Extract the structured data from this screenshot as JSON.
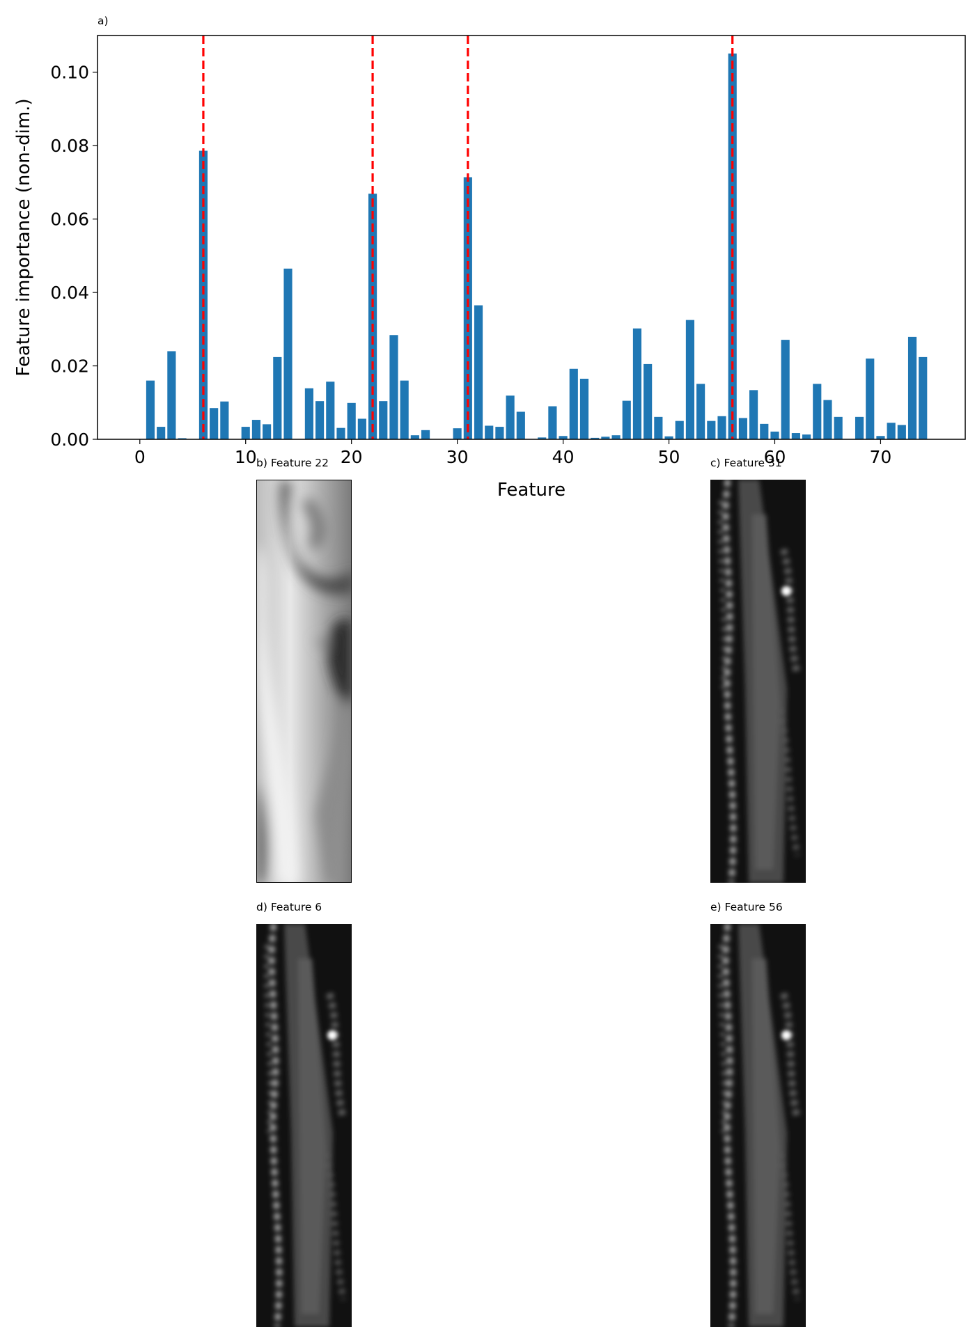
{
  "chart_data": {
    "type": "bar",
    "panel_label": "a)",
    "xlabel": "Feature",
    "ylabel": "Feature importance (non-dim.)",
    "xlim": [
      -4,
      78
    ],
    "ylim": [
      0,
      0.11
    ],
    "xticks": [
      0,
      10,
      20,
      30,
      40,
      50,
      60,
      70
    ],
    "yticks": [
      "0.00",
      "0.02",
      "0.04",
      "0.06",
      "0.08",
      "0.10"
    ],
    "bar_color": "#1f77b4",
    "highlight_line_color": "#ff0000",
    "highlighted_features": [
      6,
      22,
      31,
      56
    ],
    "grid": false,
    "x": [
      0,
      1,
      2,
      3,
      4,
      5,
      6,
      7,
      8,
      9,
      10,
      11,
      12,
      13,
      14,
      15,
      16,
      17,
      18,
      19,
      20,
      21,
      22,
      23,
      24,
      25,
      26,
      27,
      28,
      29,
      30,
      31,
      32,
      33,
      34,
      35,
      36,
      37,
      38,
      39,
      40,
      41,
      42,
      43,
      44,
      45,
      46,
      47,
      48,
      49,
      50,
      51,
      52,
      53,
      54,
      55,
      56,
      57,
      58,
      59,
      60,
      61,
      62,
      63,
      64,
      65,
      66,
      67,
      68,
      69,
      70,
      71,
      72,
      73,
      74
    ],
    "values": [
      0.0,
      0.016,
      0.0034,
      0.024,
      0.0003,
      0.0,
      0.0786,
      0.0085,
      0.0103,
      0.0,
      0.0034,
      0.0053,
      0.0041,
      0.0224,
      0.0465,
      0.0,
      0.0139,
      0.0104,
      0.0157,
      0.0031,
      0.0099,
      0.0056,
      0.0669,
      0.0104,
      0.0284,
      0.016,
      0.0011,
      0.0025,
      0.0,
      0.0,
      0.003,
      0.0714,
      0.0365,
      0.0037,
      0.0034,
      0.0119,
      0.0075,
      0.0,
      0.0005,
      0.009,
      0.0009,
      0.0192,
      0.0165,
      0.0004,
      0.0007,
      0.0011,
      0.0105,
      0.0302,
      0.0205,
      0.0061,
      0.0008,
      0.005,
      0.0325,
      0.0151,
      0.005,
      0.0063,
      0.1051,
      0.0058,
      0.0134,
      0.0042,
      0.0021,
      0.0271,
      0.0017,
      0.0013,
      0.0151,
      0.0107,
      0.0061,
      0.0,
      0.0061,
      0.022,
      0.0009,
      0.0045,
      0.0039,
      0.0279,
      0.0224
    ]
  },
  "panels": {
    "b": {
      "title": "b) Feature 22"
    },
    "c": {
      "title": "c) Feature 31"
    },
    "d": {
      "title": "d) Feature 6"
    },
    "e": {
      "title": "e) Feature 56"
    }
  }
}
